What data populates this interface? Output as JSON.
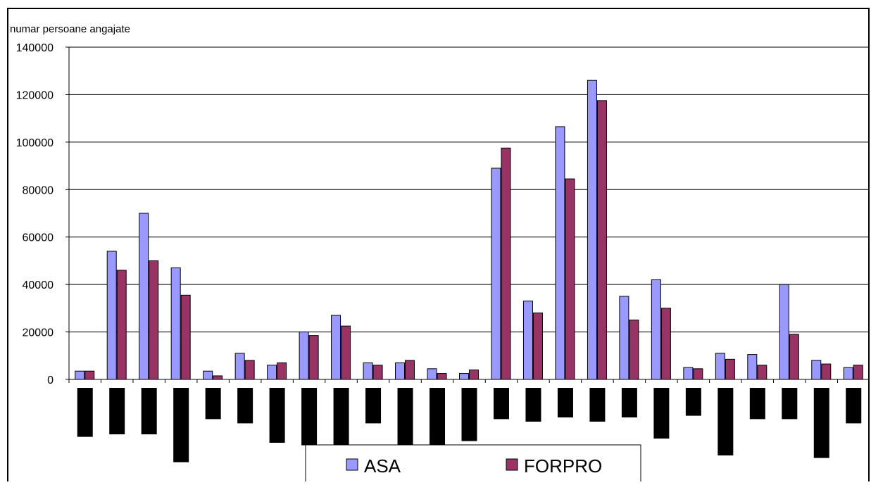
{
  "chart_data": {
    "type": "bar",
    "ylabel": "numar persoane angajate",
    "ylim": [
      0,
      140000
    ],
    "yticks": [
      "0",
      "20000",
      "40000",
      "60000",
      "80000",
      "100000",
      "120000",
      "140000"
    ],
    "grid": true,
    "categories": [
      "",
      "",
      "",
      "",
      "",
      "",
      "",
      "",
      "",
      "",
      "",
      "",
      "",
      "",
      "",
      "",
      "",
      "",
      "",
      "",
      "",
      "",
      "",
      "",
      ""
    ],
    "series": [
      {
        "name": "ASA",
        "color": "#9999ff",
        "values": [
          3500,
          54000,
          70000,
          47000,
          3500,
          11000,
          6000,
          20000,
          27000,
          7000,
          7000,
          4500,
          2500,
          89000,
          33000,
          106500,
          126000,
          35000,
          42000,
          5000,
          11000,
          10500,
          40000,
          8000,
          5000
        ]
      },
      {
        "name": "FORPRO",
        "color": "#993366",
        "values": [
          3500,
          46000,
          50000,
          35500,
          1500,
          8000,
          7000,
          18500,
          22500,
          6000,
          8000,
          2500,
          4000,
          97500,
          28000,
          84500,
          117500,
          25000,
          30000,
          4500,
          8500,
          6000,
          19000,
          6500,
          6000
        ]
      }
    ],
    "legend": "bottom",
    "redacted_label_depths": [
      0.58,
      0.55,
      0.55,
      0.88,
      0.37,
      0.42,
      0.65,
      0.68,
      0.68,
      0.42,
      0.73,
      0.68,
      0.63,
      0.37,
      0.4,
      0.35,
      0.4,
      0.35,
      0.6,
      0.33,
      0.8,
      0.37,
      0.37,
      0.83,
      0.42
    ]
  }
}
